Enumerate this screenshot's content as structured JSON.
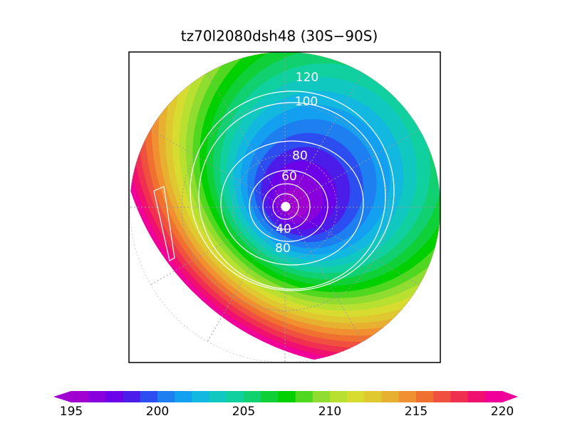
{
  "title": "tz70l2080dsh48 (30S−90S)",
  "contour_labels": [
    "120",
    "100",
    "80",
    "60",
    "40",
    "80"
  ],
  "colorbar": {
    "ticks": [
      195,
      200,
      205,
      210,
      215,
      220
    ]
  }
}
